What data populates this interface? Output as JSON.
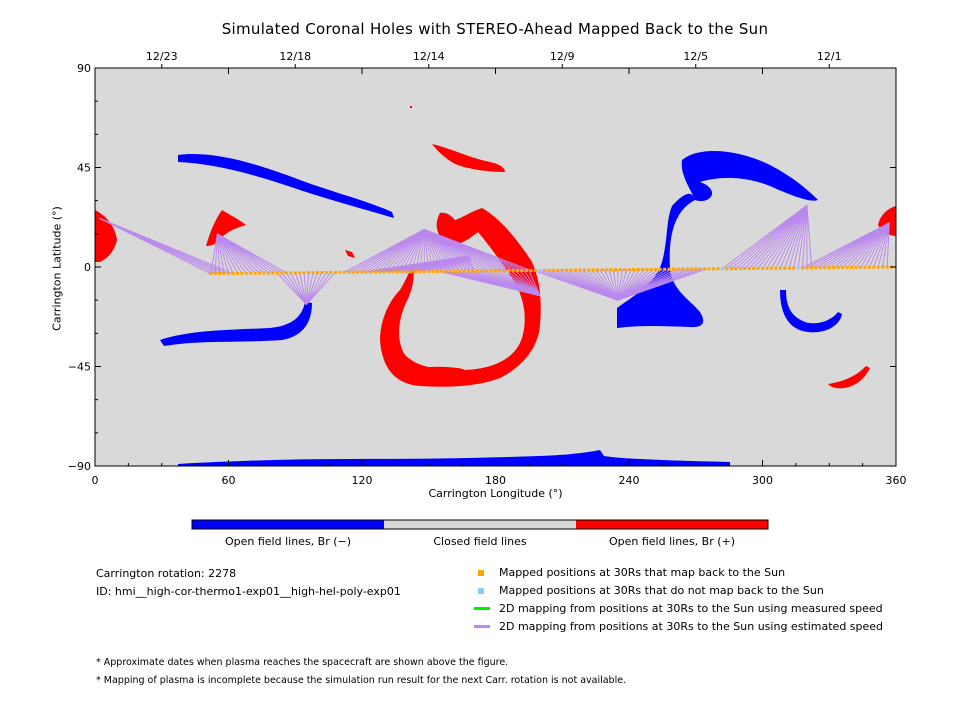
{
  "chart_data": {
    "type": "map",
    "title": "Simulated Coronal Holes with STEREO-Ahead Mapped Back to the Sun",
    "xlabel": "Carrington Longitude (°)",
    "ylabel": "Carrington Latitude (°)",
    "xlim": [
      0,
      360
    ],
    "ylim": [
      -90,
      90
    ],
    "x_ticks": [
      "0",
      "60",
      "120",
      "180",
      "240",
      "300",
      "360"
    ],
    "y_ticks": [
      "90",
      "45",
      "0",
      "−45",
      "−90"
    ],
    "top_axis": {
      "dates": [
        {
          "label": "12/23",
          "lon": 30
        },
        {
          "label": "12/18",
          "lon": 90
        },
        {
          "label": "12/14",
          "lon": 150
        },
        {
          "label": "12/9",
          "lon": 210
        },
        {
          "label": "12/5",
          "lon": 270
        },
        {
          "label": "12/1",
          "lon": 330
        }
      ]
    },
    "colorbar": {
      "segments": [
        {
          "label": "Open field lines, Br (−)",
          "color": "#0000ff"
        },
        {
          "label": "Closed field lines",
          "color": "#d9d9d9"
        },
        {
          "label": "Open field lines, Br (+)",
          "color": "#ff0000"
        }
      ]
    },
    "colors": {
      "background": "#d9d9d9",
      "negative": "#0000ff",
      "positive": "#ff0000",
      "mapped": "#ffa500",
      "unmapped": "#87cefa",
      "measured_line": "#00ee00",
      "estimated_line": "#bb88ee"
    },
    "mapping": {
      "trajectory_lon_range": [
        52,
        360
      ],
      "trajectory_lat": [
        -3,
        0
      ],
      "unmapped_lons": [
        200,
        282,
        316
      ],
      "footpoints": [
        {
          "lon": 2,
          "lat": 22,
          "from": [
            52,
            62
          ]
        },
        {
          "lon": 55,
          "lat": 15,
          "from": [
            52,
            86
          ]
        },
        {
          "lon": 95,
          "lat": -17,
          "from": [
            82,
            108
          ]
        },
        {
          "lon": 148,
          "lat": 17,
          "from": [
            112,
            196
          ]
        },
        {
          "lon": 168,
          "lat": 5,
          "from": [
            120,
            170
          ]
        },
        {
          "lon": 200,
          "lat": -13,
          "from": [
            155,
            196
          ]
        },
        {
          "lon": 235,
          "lat": -15,
          "from": [
            197,
            276
          ]
        },
        {
          "lon": 320,
          "lat": 28,
          "from": [
            282,
            322
          ]
        },
        {
          "lon": 357,
          "lat": 20,
          "from": [
            318,
            356
          ]
        }
      ]
    }
  },
  "info": {
    "rotation": "Carrington rotation: 2278",
    "id": "ID: hmi__high-cor-thermo1-exp01__high-hel-poly-exp01"
  },
  "legend": [
    {
      "label": "Mapped positions at 30Rs that map back to the Sun",
      "kind": "square",
      "color": "#ffa500"
    },
    {
      "label": "Mapped positions at 30Rs that do not map back to the Sun",
      "kind": "square",
      "color": "#87cefa"
    },
    {
      "label": "2D mapping from positions at 30Rs to the Sun using measured speed",
      "kind": "line",
      "color": "#00ee00"
    },
    {
      "label": "2D mapping from positions at 30Rs to the Sun using estimated speed",
      "kind": "line",
      "color": "#bb88ee"
    }
  ],
  "notes": [
    "* Approximate dates when plasma reaches the spacecraft are shown above the figure.",
    "* Mapping of plasma is incomplete because the simulation run result for the next Carr. rotation is not available."
  ]
}
